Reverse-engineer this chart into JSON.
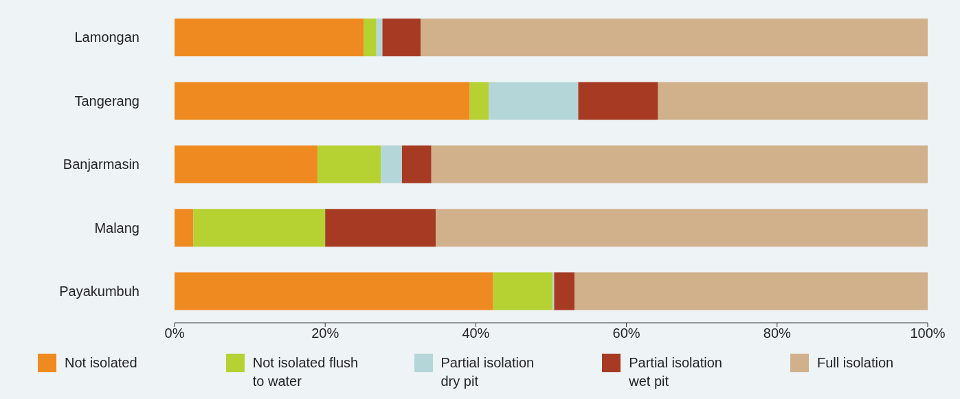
{
  "chart_data": {
    "type": "bar",
    "orientation": "horizontal",
    "stacked": true,
    "legend": "bottom",
    "categories": [
      "Lamongan",
      "Tangerang",
      "Banjarmasin",
      "Malang",
      "Payakumbuh"
    ],
    "xlim": [
      0,
      100
    ],
    "xticks": [
      {
        "value": 0,
        "label": "0%"
      },
      {
        "value": 20,
        "label": "20%"
      },
      {
        "value": 40,
        "label": "40%"
      },
      {
        "value": 60,
        "label": "60%"
      },
      {
        "value": 80,
        "label": "80%"
      },
      {
        "value": 100,
        "label": "100%"
      }
    ],
    "series": [
      {
        "name": "Not isolated",
        "color": "#ee8a1f",
        "values": [
          25.1,
          39.2,
          19.0,
          2.5,
          42.3
        ]
      },
      {
        "name": "Not isolated flush to water",
        "color": "#b5d132",
        "values": [
          1.7,
          2.5,
          8.4,
          17.5,
          7.9
        ]
      },
      {
        "name": "Partial isolation dry pit",
        "color": "#b5d6d9",
        "values": [
          0.8,
          11.9,
          2.8,
          0,
          0.2
        ]
      },
      {
        "name": "Partial isolation wet pit",
        "color": "#a63a23",
        "values": [
          5.1,
          10.6,
          3.9,
          14.7,
          2.7
        ]
      },
      {
        "name": "Full isolation",
        "color": "#d1b08c",
        "values": [
          67.3,
          35.8,
          65.9,
          65.3,
          46.9
        ]
      }
    ]
  }
}
